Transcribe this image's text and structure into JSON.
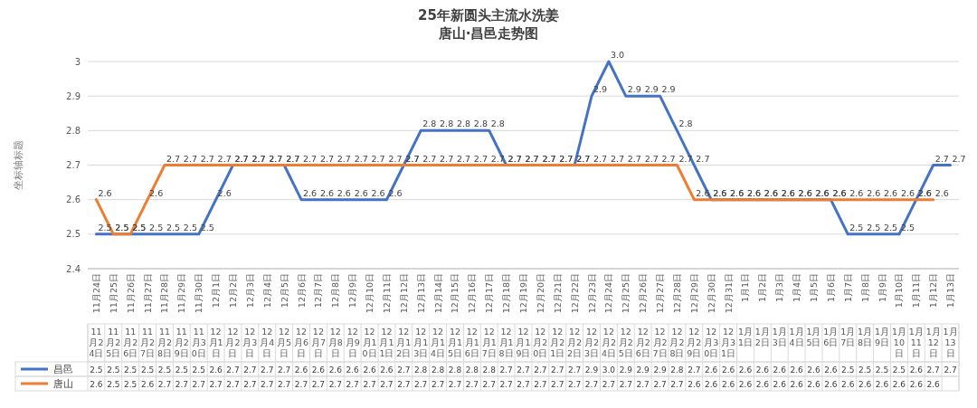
{
  "chart_data": {
    "type": "line",
    "title": "25年新圆头主流水洗姜",
    "subtitle": "唐山·昌邑走势图",
    "ylabel": "坐标轴标题",
    "categories": [
      "11月24日",
      "11月25日",
      "11月26日",
      "11月27日",
      "11月28日",
      "11月29日",
      "11月30日",
      "12月1日",
      "12月2日",
      "12月3日",
      "12月4日",
      "12月5日",
      "12月6日",
      "12月7日",
      "12月8日",
      "12月9日",
      "12月10日",
      "12月11日",
      "12月12日",
      "12月13日",
      "12月14日",
      "12月15日",
      "12月16日",
      "12月17日",
      "12月18日",
      "12月19日",
      "12月20日",
      "12月21日",
      "12月22日",
      "12月23日",
      "12月24日",
      "12月25日",
      "12月26日",
      "12月27日",
      "12月28日",
      "12月29日",
      "12月30日",
      "12月31日",
      "1月1日",
      "1月2日",
      "1月3日",
      "1月4日",
      "1月5日",
      "1月6日",
      "1月7日",
      "1月8日",
      "1月9日",
      "1月10日",
      "1月11日",
      "1月12日",
      "1月13日"
    ],
    "series": [
      {
        "name": "昌邑",
        "color": "#4472c4",
        "values": [
          2.5,
          2.5,
          2.5,
          2.5,
          2.5,
          2.5,
          2.5,
          2.6,
          2.7,
          2.7,
          2.7,
          2.7,
          2.6,
          2.6,
          2.6,
          2.6,
          2.6,
          2.6,
          2.7,
          2.8,
          2.8,
          2.8,
          2.8,
          2.8,
          2.7,
          2.7,
          2.7,
          2.7,
          2.7,
          2.9,
          3.0,
          2.9,
          2.9,
          2.9,
          2.8,
          2.7,
          2.6,
          2.6,
          2.6,
          2.6,
          2.6,
          2.6,
          2.6,
          2.6,
          2.5,
          2.5,
          2.5,
          2.5,
          2.6,
          2.7,
          2.7
        ],
        "value_labels": [
          "2.5",
          "2.5",
          "2.5",
          "2.5",
          "2.5",
          "2.5",
          "2.5",
          "2.6",
          "2.7",
          "2.7",
          "2.7",
          "2.7",
          "2.6",
          "2.6",
          "2.6",
          "2.6",
          "2.6",
          "2.6",
          "2.7",
          "2.8",
          "2.8",
          "2.8",
          "2.8",
          "2.8",
          "2.7",
          "2.7",
          "2.7",
          "2.7",
          "2.7",
          "2.9",
          "3.0",
          "2.9",
          "2.9",
          "2.9",
          "2.8",
          "2.7",
          "2.6",
          "2.6",
          "2.6",
          "2.6",
          "2.6",
          "2.6",
          "2.6",
          "2.6",
          "2.5",
          "2.5",
          "2.5",
          "2.5",
          "2.6",
          "2.7",
          "2.7"
        ]
      },
      {
        "name": "唐山",
        "color": "#ed7d31",
        "values": [
          2.6,
          2.5,
          2.5,
          2.6,
          2.7,
          2.7,
          2.7,
          2.7,
          2.7,
          2.7,
          2.7,
          2.7,
          2.7,
          2.7,
          2.7,
          2.7,
          2.7,
          2.7,
          2.7,
          2.7,
          2.7,
          2.7,
          2.7,
          2.7,
          2.7,
          2.7,
          2.7,
          2.7,
          2.7,
          2.7,
          2.7,
          2.7,
          2.7,
          2.7,
          2.7,
          2.6,
          2.6,
          2.6,
          2.6,
          2.6,
          2.6,
          2.6,
          2.6,
          2.6,
          2.6,
          2.6,
          2.6,
          2.6,
          2.6,
          2.6,
          null
        ],
        "value_labels": [
          "2.6",
          "2.5",
          "2.5",
          "2.6",
          "2.7",
          "2.7",
          "2.7",
          "2.7",
          "2.7",
          "2.7",
          "2.7",
          "2.7",
          "2.7",
          "2.7",
          "2.7",
          "2.7",
          "2.7",
          "2.7",
          "2.7",
          "2.7",
          "2.7",
          "2.7",
          "2.7",
          "2.7",
          "2.7",
          "2.7",
          "2.7",
          "2.7",
          "2.7",
          "2.7",
          "2.7",
          "2.7",
          "2.7",
          "2.7",
          "2.7",
          "2.6",
          "2.6",
          "2.6",
          "2.6",
          "2.6",
          "2.6",
          "2.6",
          "2.6",
          "2.6",
          "2.6",
          "2.6",
          "2.6",
          "2.6",
          "2.6",
          "2.6",
          null
        ]
      }
    ],
    "ylim": [
      2.4,
      3
    ],
    "yticks": [
      2.4,
      2.5,
      2.6,
      2.7,
      2.8,
      2.9,
      3
    ],
    "grid": "y",
    "legend": "bottom"
  }
}
